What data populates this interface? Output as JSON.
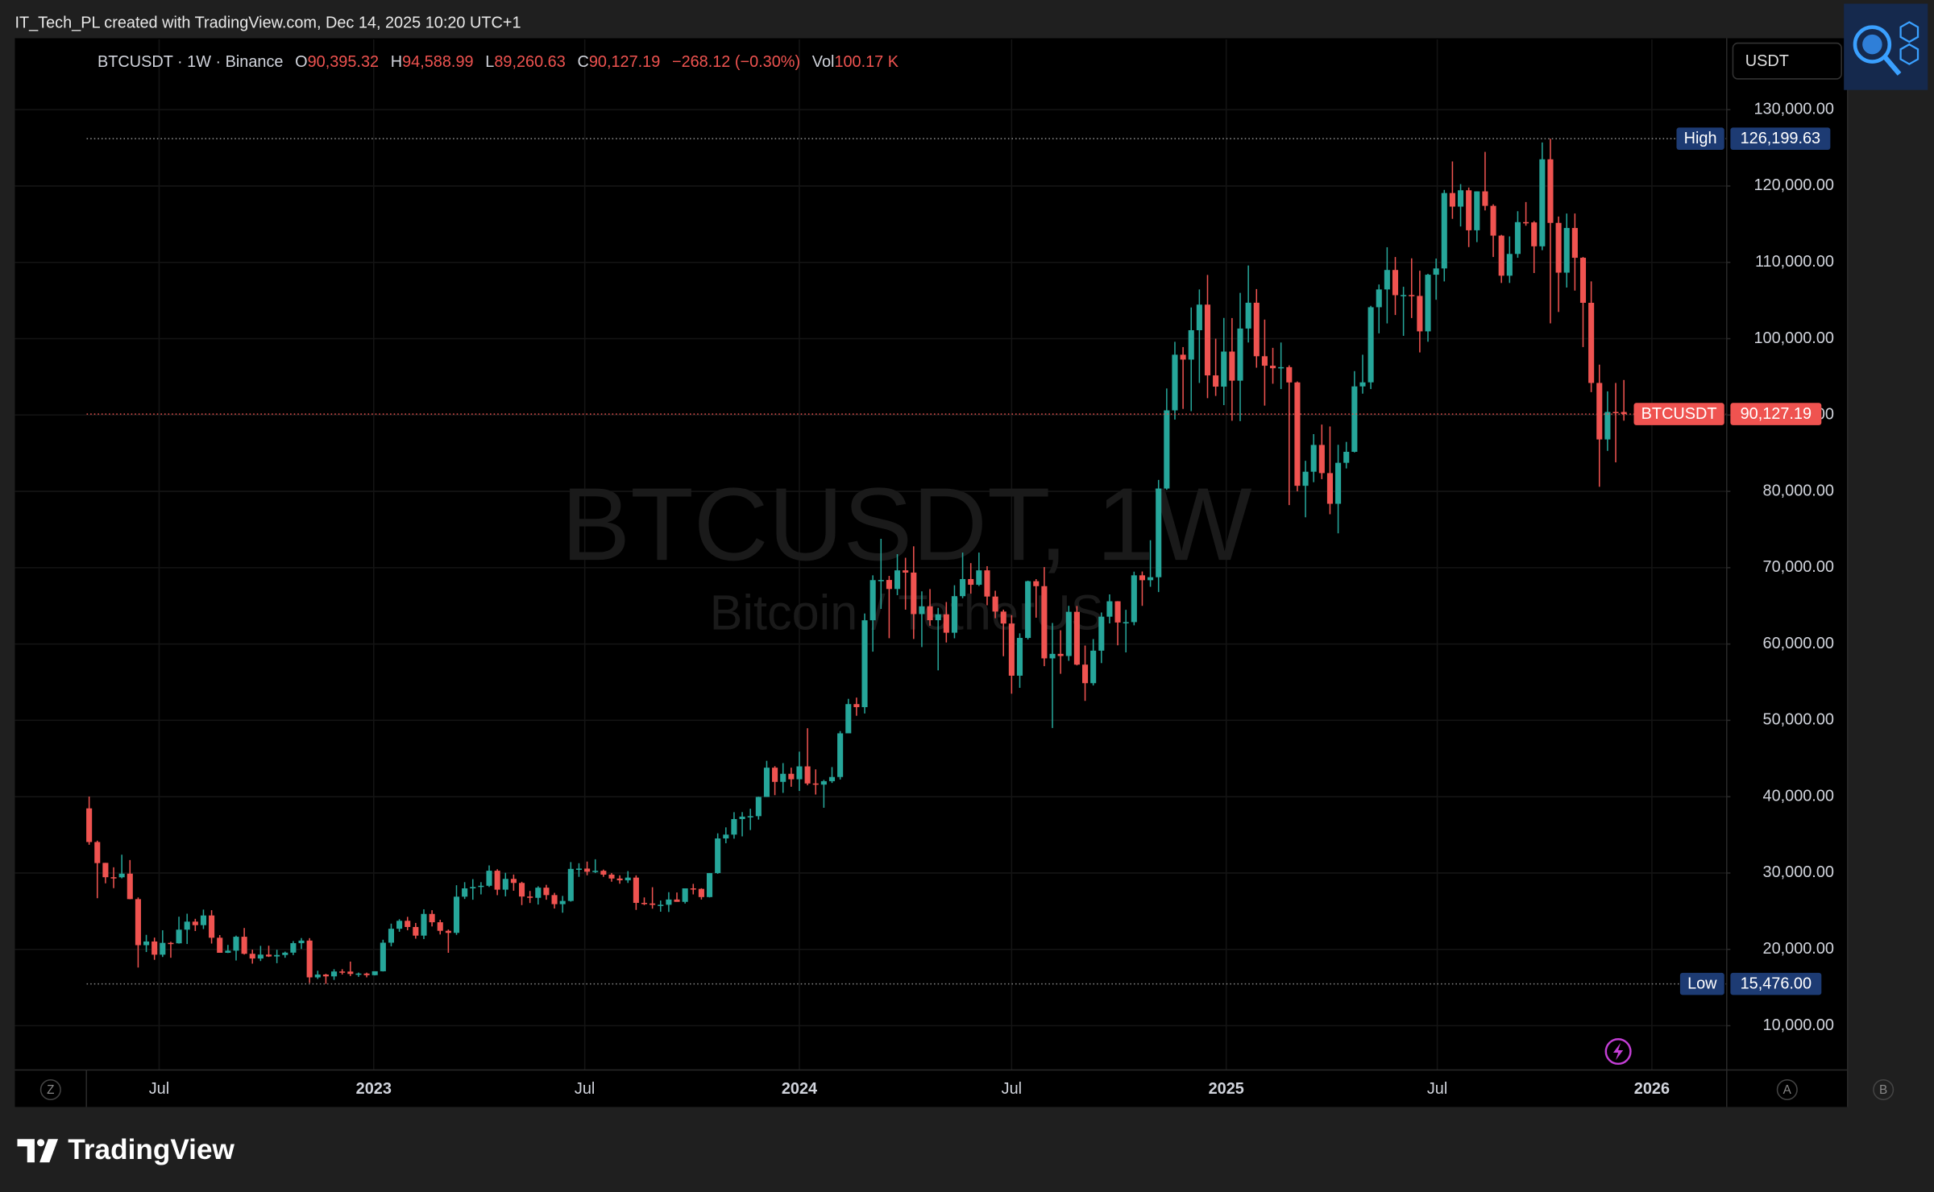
{
  "credit": "IT_Tech_PL created with TradingView.com, Dec 14, 2025 10:20 UTC+1",
  "brand": "TradingView",
  "toolbar": {
    "left": "Z",
    "right_a": "A",
    "right_b": "B"
  },
  "chart_data": {
    "type": "candlestick",
    "title": "BTCUSDT, 1W",
    "subtitle": "Bitcoin / TetherUS",
    "currency": "USDT",
    "legend": {
      "symbol": "BTCUSDT · 1W · Binance",
      "o_label": "O",
      "o": "90,395.32",
      "h_label": "H",
      "h": "94,588.99",
      "l_label": "L",
      "l": "89,260.63",
      "c_label": "C",
      "c": "90,127.19",
      "change": "−268.12 (−0.30%)",
      "vol_label": "Vol",
      "vol": "100.17 K"
    },
    "up_color": "#26a69a",
    "down_color": "#ef5350",
    "ohlc": [
      [
        38470,
        40020,
        33700,
        34060
      ],
      [
        34060,
        34240,
        26700,
        31300
      ],
      [
        31330,
        31330,
        28650,
        29450
      ],
      [
        29450,
        30750,
        28020,
        29440
      ],
      [
        29440,
        32400,
        29300,
        29920
      ],
      [
        29920,
        31700,
        26560,
        26580
      ],
      [
        26580,
        26800,
        17620,
        20550
      ],
      [
        20550,
        21900,
        19650,
        21030
      ],
      [
        21030,
        21540,
        18630,
        19300
      ],
      [
        19300,
        22500,
        19000,
        20850
      ],
      [
        20850,
        21000,
        18900,
        20790
      ],
      [
        20790,
        24280,
        20750,
        22580
      ],
      [
        22580,
        24670,
        20700,
        23630
      ],
      [
        23630,
        24000,
        22400,
        23170
      ],
      [
        23170,
        25210,
        22660,
        24440
      ],
      [
        24440,
        25130,
        20760,
        21520
      ],
      [
        21520,
        21870,
        19800,
        19550
      ],
      [
        19550,
        20580,
        19520,
        19830
      ],
      [
        19830,
        21800,
        18540,
        21650
      ],
      [
        21650,
        22800,
        19320,
        19420
      ],
      [
        19420,
        19960,
        18130,
        18800
      ],
      [
        18800,
        20460,
        18470,
        19310
      ],
      [
        19310,
        20480,
        19000,
        19070
      ],
      [
        19070,
        19950,
        18190,
        19260
      ],
      [
        19260,
        19700,
        18900,
        19570
      ],
      [
        19570,
        21080,
        19250,
        20810
      ],
      [
        20810,
        21480,
        20050,
        21150
      ],
      [
        21150,
        21470,
        15590,
        16330
      ],
      [
        16330,
        17200,
        16120,
        16700
      ],
      [
        16700,
        16800,
        15476,
        16460
      ],
      [
        16460,
        17400,
        16000,
        17100
      ],
      [
        17100,
        17400,
        16700,
        17090
      ],
      [
        17090,
        18400,
        16500,
        16780
      ],
      [
        16780,
        16960,
        16400,
        16830
      ],
      [
        16830,
        16950,
        16330,
        16620
      ],
      [
        16620,
        17130,
        16590,
        17130
      ],
      [
        17130,
        21260,
        17100,
        20870
      ],
      [
        20870,
        23370,
        20400,
        22700
      ],
      [
        22700,
        23950,
        22300,
        23740
      ],
      [
        23740,
        24260,
        22500,
        22930
      ],
      [
        22930,
        23460,
        21400,
        21800
      ],
      [
        21800,
        25250,
        21350,
        24640
      ],
      [
        24640,
        25130,
        23000,
        23550
      ],
      [
        23550,
        23880,
        21950,
        22430
      ],
      [
        22430,
        22600,
        19550,
        22160
      ],
      [
        22160,
        28400,
        21900,
        26900
      ],
      [
        26900,
        28800,
        26600,
        27990
      ],
      [
        27990,
        29200,
        26500,
        28170
      ],
      [
        28170,
        28800,
        27200,
        28330
      ],
      [
        28330,
        31000,
        28170,
        30300
      ],
      [
        30300,
        30500,
        27100,
        27820
      ],
      [
        27820,
        30030,
        26940,
        29230
      ],
      [
        29230,
        29800,
        27680,
        28700
      ],
      [
        28700,
        28850,
        25800,
        26920
      ],
      [
        26920,
        27650,
        26070,
        26750
      ],
      [
        26750,
        28260,
        25870,
        28080
      ],
      [
        28080,
        28450,
        26500,
        27110
      ],
      [
        27110,
        27400,
        25350,
        25920
      ],
      [
        25920,
        27000,
        24800,
        26340
      ],
      [
        26340,
        31430,
        26250,
        30540
      ],
      [
        30540,
        31280,
        29500,
        30580
      ],
      [
        30580,
        31500,
        29700,
        30170
      ],
      [
        30170,
        31800,
        30000,
        30290
      ],
      [
        30290,
        30450,
        29500,
        29790
      ],
      [
        29790,
        30000,
        28860,
        29280
      ],
      [
        29280,
        29700,
        28600,
        29050
      ],
      [
        29050,
        30250,
        28700,
        29400
      ],
      [
        29400,
        29690,
        25170,
        26090
      ],
      [
        26090,
        26800,
        25800,
        26010
      ],
      [
        26010,
        28140,
        25330,
        25830
      ],
      [
        25830,
        26400,
        24930,
        25840
      ],
      [
        25840,
        27490,
        24900,
        26530
      ],
      [
        26530,
        27450,
        26380,
        26220
      ],
      [
        26220,
        27300,
        26000,
        27990
      ],
      [
        27990,
        28580,
        27200,
        27920
      ],
      [
        27920,
        28000,
        26530,
        26850
      ],
      [
        26850,
        30000,
        26800,
        29990
      ],
      [
        29990,
        35200,
        29900,
        34530
      ],
      [
        34530,
        35980,
        33900,
        35030
      ],
      [
        35030,
        37970,
        34500,
        37070
      ],
      [
        37070,
        37980,
        34800,
        37390
      ],
      [
        37390,
        38420,
        35630,
        37450
      ],
      [
        37450,
        40000,
        37000,
        39970
      ],
      [
        39970,
        44700,
        39970,
        43800
      ],
      [
        43800,
        44000,
        40200,
        41940
      ],
      [
        41940,
        44400,
        40500,
        43000
      ],
      [
        43000,
        43800,
        41300,
        42280
      ],
      [
        42280,
        45900,
        40750,
        43970
      ],
      [
        43970,
        48970,
        41500,
        41730
      ],
      [
        41730,
        43580,
        40280,
        41580
      ],
      [
        41580,
        42200,
        38550,
        42030
      ],
      [
        42030,
        43880,
        41800,
        42580
      ],
      [
        42580,
        48600,
        42250,
        48300
      ],
      [
        48300,
        52820,
        48300,
        52130
      ],
      [
        52130,
        52980,
        50600,
        51730
      ],
      [
        51730,
        64000,
        50900,
        63110
      ],
      [
        63110,
        69000,
        59000,
        68370
      ],
      [
        68370,
        73780,
        64600,
        68390
      ],
      [
        68390,
        68920,
        60760,
        67210
      ],
      [
        67210,
        71770,
        66400,
        69650
      ],
      [
        69650,
        71300,
        64500,
        69360
      ],
      [
        69360,
        72800,
        60660,
        63920
      ],
      [
        63920,
        66900,
        59600,
        64940
      ],
      [
        64940,
        67200,
        62400,
        63120
      ],
      [
        63120,
        64740,
        56550,
        63890
      ],
      [
        63890,
        65500,
        60200,
        61480
      ],
      [
        61480,
        67700,
        60750,
        66270
      ],
      [
        66270,
        71980,
        66000,
        68510
      ],
      [
        68510,
        70600,
        66600,
        67760
      ],
      [
        67760,
        71980,
        67600,
        69650
      ],
      [
        69650,
        70200,
        65080,
        66220
      ],
      [
        66220,
        66980,
        63380,
        64250
      ],
      [
        64250,
        64500,
        58400,
        62680
      ],
      [
        62680,
        63780,
        53490,
        55850
      ],
      [
        55850,
        61400,
        54260,
        60800
      ],
      [
        60800,
        68300,
        60600,
        68230
      ],
      [
        68230,
        68500,
        63450,
        67580
      ],
      [
        67580,
        70080,
        57100,
        58120
      ],
      [
        58120,
        62750,
        49000,
        58710
      ],
      [
        58710,
        61800,
        56100,
        58430
      ],
      [
        58430,
        65000,
        57800,
        64220
      ],
      [
        64220,
        64980,
        57200,
        57300
      ],
      [
        57300,
        59800,
        52550,
        54870
      ],
      [
        54870,
        60650,
        54570,
        59130
      ],
      [
        59130,
        64130,
        57500,
        63580
      ],
      [
        63580,
        66500,
        62700,
        65600
      ],
      [
        65600,
        65620,
        59830,
        62820
      ],
      [
        62820,
        64480,
        58900,
        62870
      ],
      [
        62870,
        69480,
        62450,
        69000
      ],
      [
        69000,
        69500,
        65000,
        68360
      ],
      [
        68360,
        73600,
        67500,
        68750
      ],
      [
        68750,
        81500,
        66800,
        80370
      ],
      [
        80370,
        93480,
        80200,
        90610
      ],
      [
        90610,
        99590,
        89400,
        97900
      ],
      [
        97900,
        98900,
        90800,
        97260
      ],
      [
        97260,
        104090,
        90500,
        101110
      ],
      [
        101110,
        106450,
        94200,
        104460
      ],
      [
        104460,
        108350,
        92200,
        95190
      ],
      [
        95190,
        100000,
        92500,
        93720
      ],
      [
        93720,
        102720,
        91300,
        98310
      ],
      [
        98310,
        102700,
        89250,
        94500
      ],
      [
        94500,
        106000,
        89200,
        101330
      ],
      [
        101330,
        109590,
        99500,
        104710
      ],
      [
        104710,
        106500,
        96200,
        97700
      ],
      [
        97700,
        102500,
        91230,
        96460
      ],
      [
        96460,
        98800,
        94100,
        96130
      ],
      [
        96130,
        99500,
        93400,
        96270
      ],
      [
        96270,
        96500,
        78200,
        94270
      ],
      [
        94270,
        94400,
        80000,
        80730
      ],
      [
        80730,
        84000,
        76600,
        82570
      ],
      [
        82570,
        87500,
        81200,
        86080
      ],
      [
        86080,
        88750,
        81600,
        82390
      ],
      [
        82390,
        88500,
        77000,
        78370
      ],
      [
        78370,
        86100,
        74500,
        83740
      ],
      [
        83740,
        86480,
        83000,
        85180
      ],
      [
        85180,
        95750,
        85100,
        93750
      ],
      [
        93750,
        97900,
        92800,
        94280
      ],
      [
        94280,
        104300,
        93400,
        104120
      ],
      [
        104120,
        107100,
        100700,
        106450
      ],
      [
        106450,
        111980,
        102000,
        109000
      ],
      [
        109000,
        110700,
        103100,
        105700
      ],
      [
        105700,
        106800,
        100370,
        105720
      ],
      [
        105720,
        110530,
        102700,
        105600
      ],
      [
        105600,
        108900,
        98200,
        100960
      ],
      [
        100960,
        108500,
        99600,
        108380
      ],
      [
        108380,
        110500,
        105100,
        109200
      ],
      [
        109200,
        119490,
        107500,
        119080
      ],
      [
        119080,
        123220,
        115700,
        117300
      ],
      [
        117300,
        120250,
        114700,
        119440
      ],
      [
        119440,
        119800,
        112000,
        114200
      ],
      [
        114200,
        119300,
        112650,
        119300
      ],
      [
        119300,
        124470,
        116800,
        117400
      ],
      [
        117400,
        117600,
        110700,
        113500
      ],
      [
        113500,
        113600,
        107300,
        108250
      ],
      [
        108250,
        113400,
        107300,
        111100
      ],
      [
        111100,
        116700,
        110600,
        115270
      ],
      [
        115270,
        117900,
        114800,
        115230
      ],
      [
        115230,
        115400,
        108600,
        112100
      ],
      [
        112100,
        125700,
        111600,
        123500
      ],
      [
        123500,
        126199.63,
        102000,
        115170
      ],
      [
        115170,
        116000,
        103500,
        108650
      ],
      [
        108650,
        116400,
        106700,
        114500
      ],
      [
        114500,
        116400,
        106300,
        110600
      ],
      [
        110600,
        110700,
        98900,
        104700
      ],
      [
        104700,
        107500,
        93000,
        94200
      ],
      [
        94200,
        96600,
        80600,
        86800
      ],
      [
        86800,
        93100,
        85300,
        90400
      ],
      [
        90400,
        94200,
        83800,
        90395.32
      ],
      [
        90395.32,
        94588.99,
        89260.63,
        90127.19
      ]
    ],
    "xlim": [
      -9.1,
      200.6
    ],
    "xticks": [
      {
        "value": 8.57,
        "label": "Jul"
      },
      {
        "value": 34.86,
        "label": "2023"
      },
      {
        "value": 60.71,
        "label": "Jul"
      },
      {
        "value": 87,
        "label": "2024"
      },
      {
        "value": 113,
        "label": "Jul"
      },
      {
        "value": 139.29,
        "label": "2025"
      },
      {
        "value": 165.14,
        "label": "Jul"
      },
      {
        "value": 191.43,
        "label": "2026"
      }
    ],
    "ylim": [
      4200,
      139200
    ],
    "yticks": [
      {
        "value": 10000,
        "label": "10,000.00"
      },
      {
        "value": 20000,
        "label": "20,000.00"
      },
      {
        "value": 30000,
        "label": "30,000.00"
      },
      {
        "value": 40000,
        "label": "40,000.00"
      },
      {
        "value": 50000,
        "label": "50,000.00"
      },
      {
        "value": 60000,
        "label": "60,000.00"
      },
      {
        "value": 70000,
        "label": "70,000.00"
      },
      {
        "value": 80000,
        "label": "80,000.00"
      },
      {
        "value": 90000,
        "label": "90,000.00"
      },
      {
        "value": 100000,
        "label": "100,000.00"
      },
      {
        "value": 110000,
        "label": "110,000.00"
      },
      {
        "value": 120000,
        "label": "120,000.00"
      },
      {
        "value": 130000,
        "label": "130,000.00"
      }
    ],
    "grid": true,
    "markers": [
      {
        "name": "High",
        "value": 126199.63,
        "label": "126,199.63",
        "color": "#1d3b73",
        "line": "#888888"
      },
      {
        "name": "BTCUSDT",
        "value": 90127.19,
        "label": "90,127.19",
        "color": "#ef5350",
        "line": "#ef5350"
      },
      {
        "name": "Low",
        "value": 15476,
        "label": "15,476.00",
        "color": "#1d3b73",
        "line": "#888888"
      }
    ]
  }
}
